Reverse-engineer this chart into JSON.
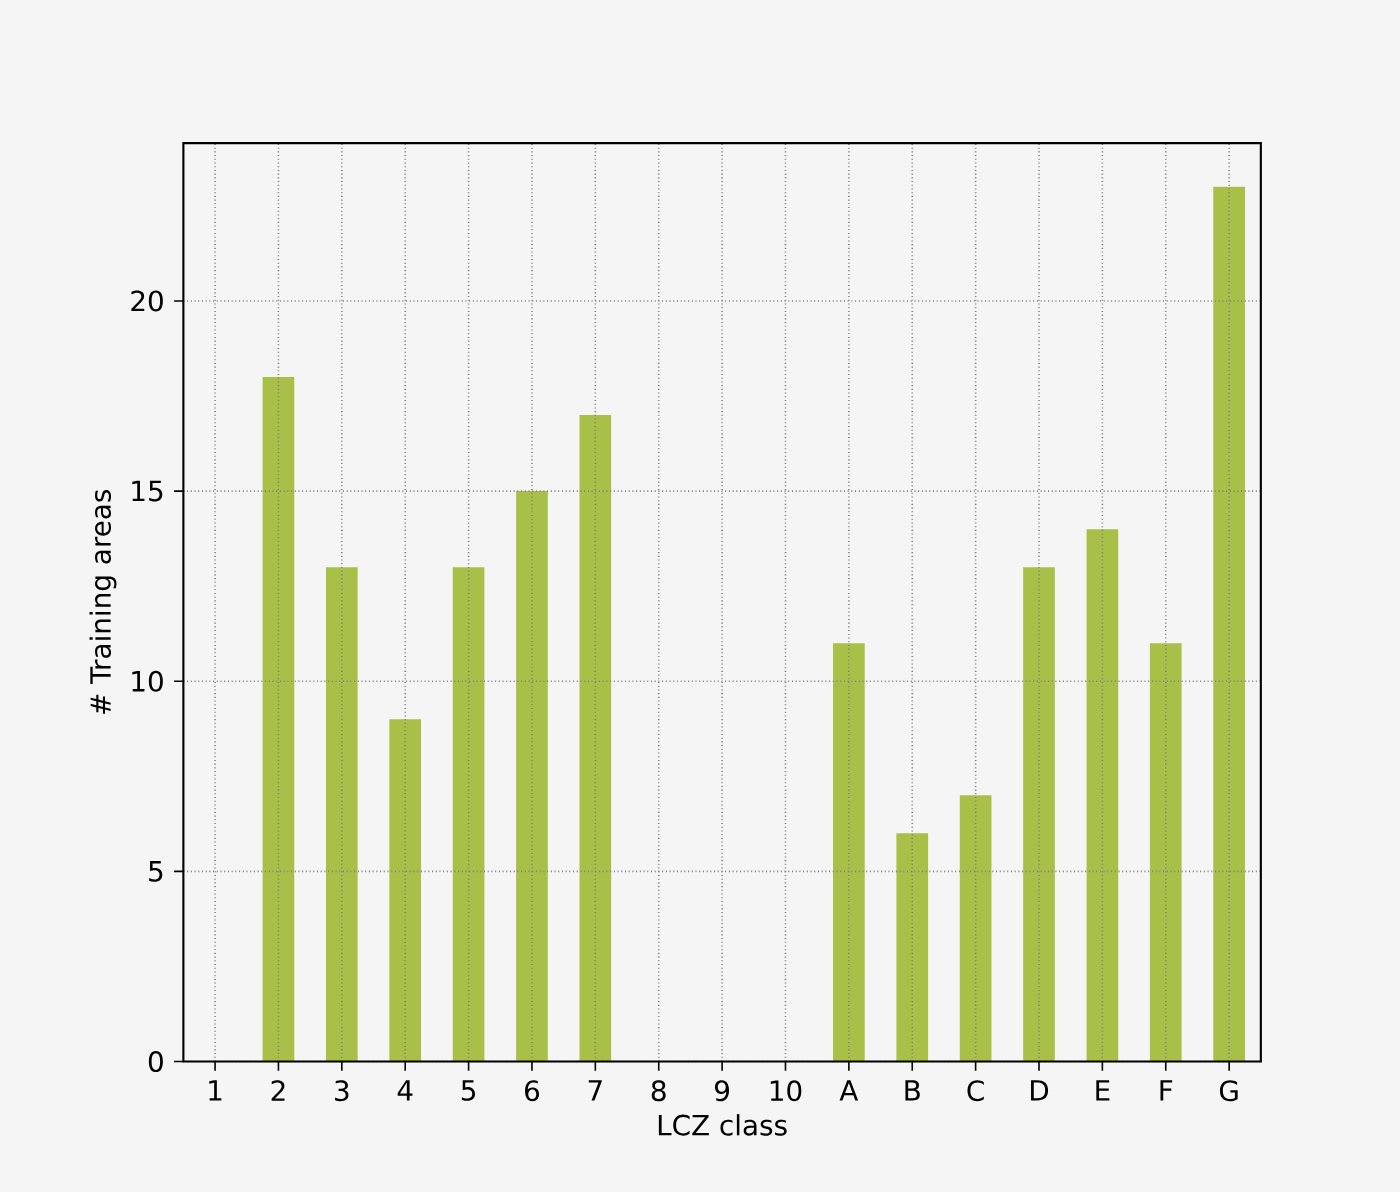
{
  "chart_data": {
    "type": "bar",
    "xlabel": "LCZ class",
    "ylabel": "# Training areas",
    "categories": [
      "1",
      "2",
      "3",
      "4",
      "5",
      "6",
      "7",
      "8",
      "9",
      "10",
      "A",
      "B",
      "C",
      "D",
      "E",
      "F",
      "G"
    ],
    "values": [
      0,
      18,
      13,
      9,
      13,
      15,
      17,
      0,
      0,
      0,
      11,
      6,
      7,
      13,
      14,
      11,
      23
    ],
    "color": "#a8c048",
    "ylim": [
      0,
      24.15
    ],
    "yticks": [
      0,
      5,
      10,
      15,
      20
    ],
    "grid": true
  }
}
